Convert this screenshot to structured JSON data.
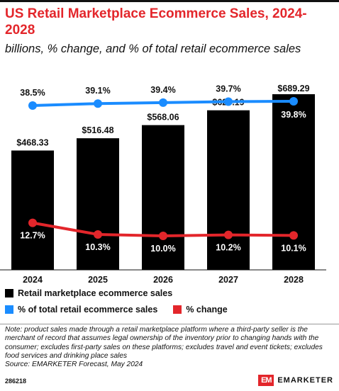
{
  "header": {
    "title": "US Retail Marketplace Ecommerce Sales, 2024-2028",
    "subtitle": "billions, % change, and % of total retail ecommerce sales"
  },
  "chart_data": {
    "type": "bar",
    "categories": [
      "2024",
      "2025",
      "2026",
      "2027",
      "2028"
    ],
    "series": [
      {
        "name": "Retail marketplace ecommerce sales",
        "type": "bar",
        "color": "#000000",
        "values": [
          468.33,
          516.48,
          568.06,
          626.19,
          689.29
        ],
        "labels": [
          "$468.33",
          "$516.48",
          "$568.06",
          "$626.19",
          "$689.29"
        ]
      },
      {
        "name": "% of total retail ecommerce sales",
        "type": "line",
        "color": "#1a8cff",
        "values": [
          38.5,
          39.1,
          39.4,
          39.7,
          39.8
        ],
        "labels": [
          "38.5%",
          "39.1%",
          "39.4%",
          "39.7%",
          "39.8%"
        ]
      },
      {
        "name": "% change",
        "type": "line",
        "color": "#e3262b",
        "values": [
          12.7,
          10.3,
          10.0,
          10.2,
          10.1
        ],
        "labels": [
          "12.7%",
          "10.3%",
          "10.0%",
          "10.2%",
          "10.1%"
        ]
      }
    ]
  },
  "legend": {
    "items": [
      {
        "label": "Retail marketplace ecommerce sales",
        "color": "#000000"
      },
      {
        "label": "% of total retail ecommerce sales",
        "color": "#1a8cff"
      },
      {
        "label": "% change",
        "color": "#e3262b"
      }
    ]
  },
  "footer": {
    "note": "Note: product sales made through a retail marketplace platform where a third-party seller is the merchant of record that assumes legal ownership of the inventory prior to changing hands with the consumer; excludes first-party sales on these platforms; excludes travel and event tickets; excludes food services and drinking place sales",
    "source": "Source: EMARKETER Forecast, May 2024",
    "id": "286218",
    "brand_logo": "EM",
    "brand_name": "EMARKETER"
  }
}
